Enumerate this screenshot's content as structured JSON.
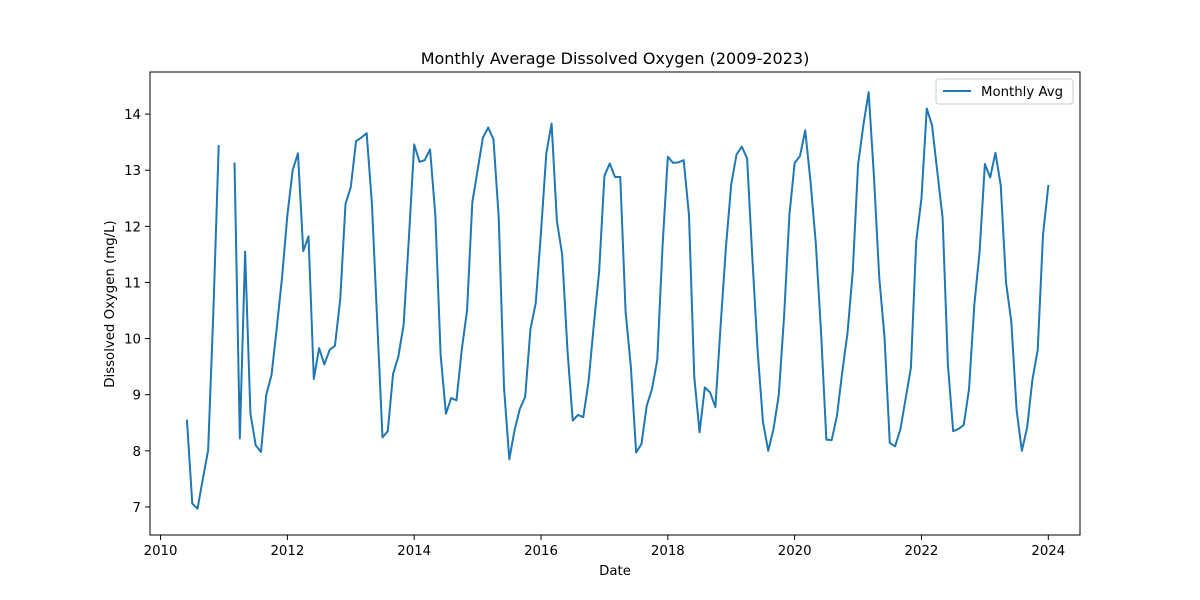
{
  "chart_data": {
    "type": "line",
    "title": "Monthly Average Dissolved Oxygen (2009-2023)",
    "xlabel": "Date",
    "ylabel": "Dissolved Oxygen (mg/L)",
    "x_axis_type": "date",
    "xlim": [
      "2009-11-01",
      "2024-07-01"
    ],
    "ylim": [
      6.5,
      14.75
    ],
    "x_ticks": [
      "2010",
      "2012",
      "2014",
      "2016",
      "2018",
      "2020",
      "2022",
      "2024"
    ],
    "y_ticks": [
      "7",
      "8",
      "9",
      "10",
      "11",
      "12",
      "13",
      "14"
    ],
    "grid": false,
    "legend": {
      "position": "top-right",
      "entries": [
        "Monthly Avg"
      ]
    },
    "color": "#1f77b4",
    "series": [
      {
        "name": "Monthly Avg",
        "points": [
          [
            "2010-06",
            8.54
          ],
          [
            "2010-07",
            7.06
          ],
          [
            "2010-08",
            6.97
          ],
          [
            "2010-09",
            7.5
          ],
          [
            "2010-10",
            8.01
          ],
          [
            "2010-11",
            10.5
          ],
          [
            "2010-12",
            13.43
          ],
          [
            "2011-01",
            null
          ],
          [
            "2011-02",
            null
          ],
          [
            "2011-03",
            13.12
          ],
          [
            "2011-04",
            8.22
          ],
          [
            "2011-05",
            11.55
          ],
          [
            "2011-06",
            8.67
          ],
          [
            "2011-07",
            8.1
          ],
          [
            "2011-08",
            7.98
          ],
          [
            "2011-09",
            9.0
          ],
          [
            "2011-10",
            9.35
          ],
          [
            "2011-11",
            10.2
          ],
          [
            "2011-12",
            11.1
          ],
          [
            "2012-01",
            12.2
          ],
          [
            "2012-02",
            13.0
          ],
          [
            "2012-03",
            13.3
          ],
          [
            "2012-04",
            11.56
          ],
          [
            "2012-05",
            11.82
          ],
          [
            "2012-06",
            9.28
          ],
          [
            "2012-07",
            9.83
          ],
          [
            "2012-08",
            9.54
          ],
          [
            "2012-09",
            9.8
          ],
          [
            "2012-10",
            9.87
          ],
          [
            "2012-11",
            10.7
          ],
          [
            "2012-12",
            12.4
          ],
          [
            "2013-01",
            12.7
          ],
          [
            "2013-02",
            13.52
          ],
          [
            "2013-03",
            13.58
          ],
          [
            "2013-04",
            13.66
          ],
          [
            "2013-05",
            12.4
          ],
          [
            "2013-06",
            10.3
          ],
          [
            "2013-07",
            8.24
          ],
          [
            "2013-08",
            8.35
          ],
          [
            "2013-09",
            9.37
          ],
          [
            "2013-10",
            9.68
          ],
          [
            "2013-11",
            10.25
          ],
          [
            "2013-12",
            11.8
          ],
          [
            "2014-01",
            13.46
          ],
          [
            "2014-02",
            13.15
          ],
          [
            "2014-03",
            13.18
          ],
          [
            "2014-04",
            13.37
          ],
          [
            "2014-05",
            12.2
          ],
          [
            "2014-06",
            9.71
          ],
          [
            "2014-07",
            8.66
          ],
          [
            "2014-08",
            8.94
          ],
          [
            "2014-09",
            8.9
          ],
          [
            "2014-10",
            9.8
          ],
          [
            "2014-11",
            10.5
          ],
          [
            "2014-12",
            12.43
          ],
          [
            "2015-01",
            13.0
          ],
          [
            "2015-02",
            13.58
          ],
          [
            "2015-03",
            13.76
          ],
          [
            "2015-04",
            13.55
          ],
          [
            "2015-05",
            12.15
          ],
          [
            "2015-06",
            9.12
          ],
          [
            "2015-07",
            7.85
          ],
          [
            "2015-08",
            8.37
          ],
          [
            "2015-09",
            8.75
          ],
          [
            "2015-10",
            8.96
          ],
          [
            "2015-11",
            10.17
          ],
          [
            "2015-12",
            10.63
          ],
          [
            "2016-01",
            11.9
          ],
          [
            "2016-02",
            13.3
          ],
          [
            "2016-03",
            13.83
          ],
          [
            "2016-04",
            12.1
          ],
          [
            "2016-05",
            11.5
          ],
          [
            "2016-06",
            9.8
          ],
          [
            "2016-07",
            8.54
          ],
          [
            "2016-08",
            8.64
          ],
          [
            "2016-09",
            8.6
          ],
          [
            "2016-10",
            9.24
          ],
          [
            "2016-11",
            10.25
          ],
          [
            "2016-12",
            11.2
          ],
          [
            "2017-01",
            12.9
          ],
          [
            "2017-02",
            13.12
          ],
          [
            "2017-03",
            12.88
          ],
          [
            "2017-04",
            12.88
          ],
          [
            "2017-05",
            10.48
          ],
          [
            "2017-06",
            9.5
          ],
          [
            "2017-07",
            7.97
          ],
          [
            "2017-08",
            8.12
          ],
          [
            "2017-09",
            8.8
          ],
          [
            "2017-10",
            9.1
          ],
          [
            "2017-11",
            9.62
          ],
          [
            "2017-12",
            11.65
          ],
          [
            "2018-01",
            13.24
          ],
          [
            "2018-02",
            13.13
          ],
          [
            "2018-03",
            13.14
          ],
          [
            "2018-04",
            13.18
          ],
          [
            "2018-05",
            12.2
          ],
          [
            "2018-06",
            9.32
          ],
          [
            "2018-07",
            8.33
          ],
          [
            "2018-08",
            9.13
          ],
          [
            "2018-09",
            9.04
          ],
          [
            "2018-10",
            8.78
          ],
          [
            "2018-11",
            10.25
          ],
          [
            "2018-12",
            11.64
          ],
          [
            "2019-01",
            12.75
          ],
          [
            "2019-02",
            13.28
          ],
          [
            "2019-03",
            13.42
          ],
          [
            "2019-04",
            13.21
          ],
          [
            "2019-05",
            11.42
          ],
          [
            "2019-06",
            9.77
          ],
          [
            "2019-07",
            8.52
          ],
          [
            "2019-08",
            8.0
          ],
          [
            "2019-09",
            8.39
          ],
          [
            "2019-10",
            9.0
          ],
          [
            "2019-11",
            10.4
          ],
          [
            "2019-12",
            12.2
          ],
          [
            "2020-01",
            13.13
          ],
          [
            "2020-02",
            13.25
          ],
          [
            "2020-03",
            13.71
          ],
          [
            "2020-04",
            12.8
          ],
          [
            "2020-05",
            11.7
          ],
          [
            "2020-06",
            10.1
          ],
          [
            "2020-07",
            8.2
          ],
          [
            "2020-08",
            8.19
          ],
          [
            "2020-09",
            8.62
          ],
          [
            "2020-10",
            9.4
          ],
          [
            "2020-11",
            10.1
          ],
          [
            "2020-12",
            11.2
          ],
          [
            "2021-01",
            13.1
          ],
          [
            "2021-02",
            13.8
          ],
          [
            "2021-03",
            14.39
          ],
          [
            "2021-04",
            12.9
          ],
          [
            "2021-05",
            11.1
          ],
          [
            "2021-06",
            10.03
          ],
          [
            "2021-07",
            8.14
          ],
          [
            "2021-08",
            8.08
          ],
          [
            "2021-09",
            8.38
          ],
          [
            "2021-10",
            8.93
          ],
          [
            "2021-11",
            9.48
          ],
          [
            "2021-12",
            11.73
          ],
          [
            "2022-01",
            12.5
          ],
          [
            "2022-02",
            14.1
          ],
          [
            "2022-03",
            13.8
          ],
          [
            "2022-04",
            12.97
          ],
          [
            "2022-05",
            12.15
          ],
          [
            "2022-06",
            9.53
          ],
          [
            "2022-07",
            8.35
          ],
          [
            "2022-08",
            8.39
          ],
          [
            "2022-09",
            8.46
          ],
          [
            "2022-10",
            9.1
          ],
          [
            "2022-11",
            10.6
          ],
          [
            "2022-12",
            11.55
          ],
          [
            "2023-01",
            13.11
          ],
          [
            "2023-02",
            12.87
          ],
          [
            "2023-03",
            13.31
          ],
          [
            "2023-04",
            12.73
          ],
          [
            "2023-05",
            11.0
          ],
          [
            "2023-06",
            10.3
          ],
          [
            "2023-07",
            8.73
          ],
          [
            "2023-08",
            8.0
          ],
          [
            "2023-09",
            8.42
          ],
          [
            "2023-10",
            9.27
          ],
          [
            "2023-11",
            9.8
          ],
          [
            "2023-12",
            11.85
          ],
          [
            "2024-01",
            12.72
          ]
        ]
      }
    ]
  }
}
